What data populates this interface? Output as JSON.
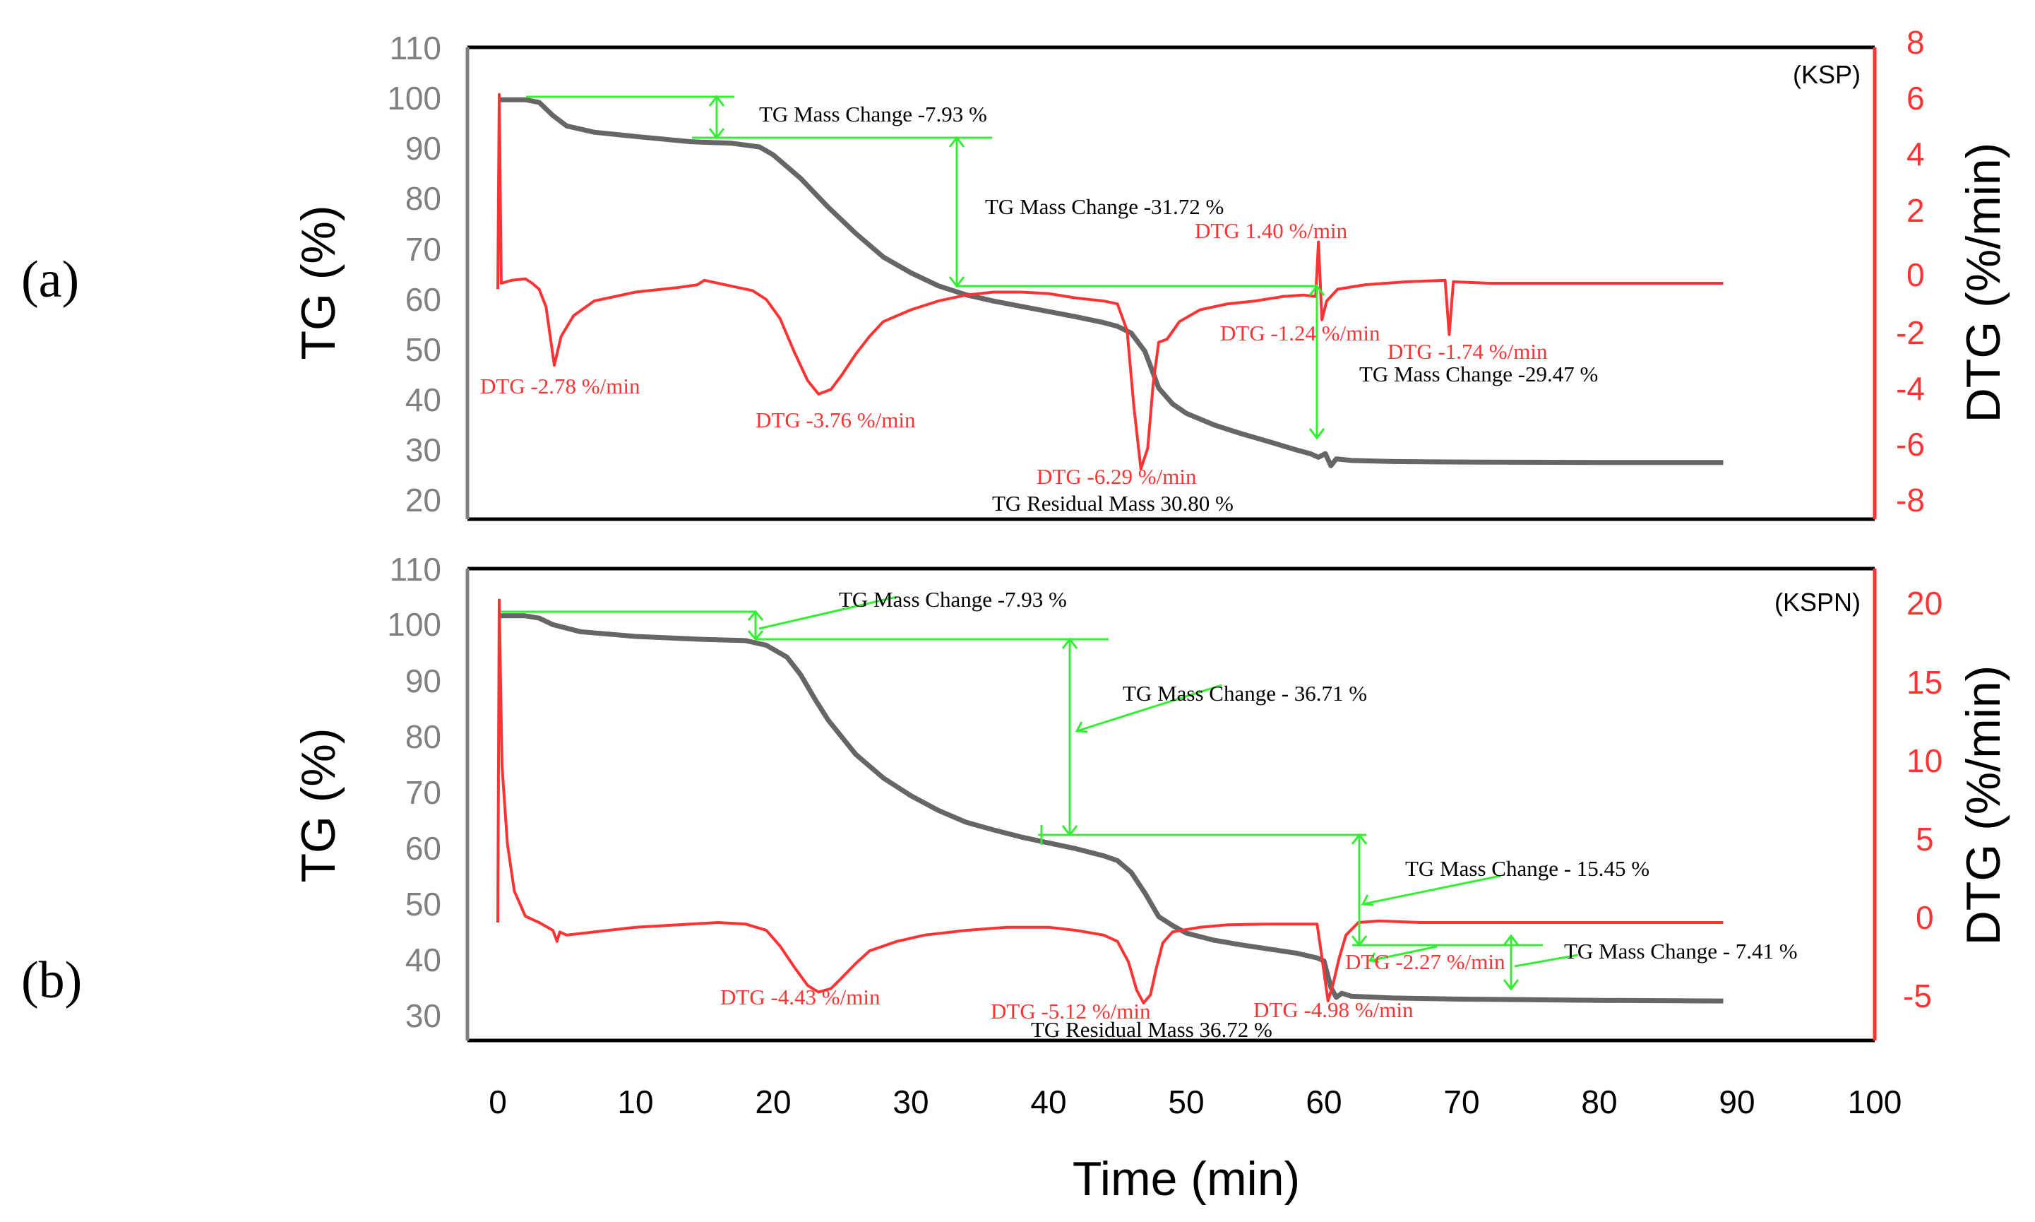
{
  "colors": {
    "tg": "#666666",
    "dtg": "#ff3333",
    "guide": "#33ee33",
    "frame": "#000000"
  },
  "chart_data": [
    {
      "type": "line",
      "panel_label": "(a)",
      "sample": "(KSP)",
      "xlabel": "Time (min)",
      "ylabel": "TG (%)",
      "y2label": "DTG (%/min)",
      "xlim": [
        0,
        100
      ],
      "ylim": [
        20,
        110
      ],
      "y2lim": [
        -8,
        8
      ],
      "x_ticks": [
        "0",
        "10",
        "20",
        "30",
        "40",
        "50",
        "60",
        "70",
        "80",
        "90",
        "100"
      ],
      "y_ticks": [
        "20",
        "30",
        "40",
        "50",
        "60",
        "70",
        "80",
        "90",
        "100",
        "110"
      ],
      "y2_ticks": [
        "-8",
        "-6",
        "-4",
        "-2",
        "0",
        "2",
        "4",
        "6",
        "8"
      ],
      "grid": false,
      "series": [
        {
          "axis": "left",
          "points": [
            [
              0,
              100
            ],
            [
              2,
              100
            ],
            [
              3,
              99.5
            ],
            [
              4,
              97
            ],
            [
              5,
              95
            ],
            [
              7,
              93.8
            ],
            [
              10,
              93
            ],
            [
              14,
              92
            ],
            [
              17,
              91.7
            ],
            [
              19,
              91
            ],
            [
              20,
              89.5
            ],
            [
              22,
              85
            ],
            [
              24,
              79.5
            ],
            [
              26,
              74.5
            ],
            [
              28,
              70
            ],
            [
              30,
              67
            ],
            [
              32,
              64.5
            ],
            [
              34,
              62.8
            ],
            [
              36,
              61.6
            ],
            [
              38,
              60.6
            ],
            [
              40,
              59.6
            ],
            [
              42,
              58.6
            ],
            [
              44,
              57.5
            ],
            [
              45,
              56.8
            ],
            [
              46,
              55.5
            ],
            [
              47,
              52
            ],
            [
              48,
              45
            ],
            [
              49,
              42
            ],
            [
              50,
              40.2
            ],
            [
              52,
              38
            ],
            [
              54,
              36.3
            ],
            [
              56,
              34.8
            ],
            [
              58,
              33.2
            ],
            [
              59,
              32.5
            ],
            [
              59.6,
              31.8
            ],
            [
              60.1,
              32.5
            ],
            [
              60.5,
              30.2
            ],
            [
              60.9,
              31.5
            ],
            [
              62,
              31.2
            ],
            [
              65,
              31
            ],
            [
              70,
              30.9
            ],
            [
              80,
              30.8
            ],
            [
              89,
              30.8
            ]
          ]
        },
        {
          "axis": "right",
          "points": [
            [
              0,
              -0.2
            ],
            [
              0.1,
              6.4
            ],
            [
              0.25,
              0
            ],
            [
              1,
              0.1
            ],
            [
              2,
              0.15
            ],
            [
              2.5,
              0
            ],
            [
              3,
              -0.2
            ],
            [
              3.5,
              -0.8
            ],
            [
              4.1,
              -2.78
            ],
            [
              4.6,
              -1.8
            ],
            [
              5.5,
              -1.1
            ],
            [
              7,
              -0.6
            ],
            [
              10,
              -0.3
            ],
            [
              13,
              -0.15
            ],
            [
              14.5,
              -0.05
            ],
            [
              15,
              0.1
            ],
            [
              17,
              -0.1
            ],
            [
              18.5,
              -0.25
            ],
            [
              19.5,
              -0.55
            ],
            [
              20.5,
              -1.2
            ],
            [
              21.5,
              -2.3
            ],
            [
              22.5,
              -3.3
            ],
            [
              23.3,
              -3.76
            ],
            [
              24.2,
              -3.6
            ],
            [
              25,
              -3.1
            ],
            [
              26,
              -2.4
            ],
            [
              27,
              -1.8
            ],
            [
              28,
              -1.3
            ],
            [
              30,
              -0.9
            ],
            [
              32,
              -0.6
            ],
            [
              34,
              -0.4
            ],
            [
              36,
              -0.3
            ],
            [
              38,
              -0.3
            ],
            [
              40,
              -0.35
            ],
            [
              42,
              -0.5
            ],
            [
              44,
              -0.6
            ],
            [
              45,
              -0.7
            ],
            [
              45.7,
              -1.6
            ],
            [
              46.2,
              -4.2
            ],
            [
              46.7,
              -6.29
            ],
            [
              47.2,
              -5.6
            ],
            [
              47.6,
              -3.4
            ],
            [
              48,
              -2
            ],
            [
              48.6,
              -1.9
            ],
            [
              49.5,
              -1.3
            ],
            [
              51,
              -0.9
            ],
            [
              53,
              -0.7
            ],
            [
              55,
              -0.6
            ],
            [
              57,
              -0.45
            ],
            [
              58.5,
              -0.4
            ],
            [
              59.4,
              -0.45
            ],
            [
              59.6,
              1.4
            ],
            [
              59.85,
              -1.24
            ],
            [
              60.2,
              -0.6
            ],
            [
              61,
              -0.2
            ],
            [
              63,
              -0.05
            ],
            [
              66,
              0.05
            ],
            [
              68.8,
              0.1
            ],
            [
              69.1,
              -1.74
            ],
            [
              69.4,
              0.05
            ],
            [
              72,
              0
            ],
            [
              76,
              0
            ],
            [
              80,
              0
            ],
            [
              85,
              0
            ],
            [
              89,
              0
            ]
          ]
        }
      ],
      "annotations": {
        "tg_changes": [
          "TG Mass Change -7.93 %",
          "TG Mass Change -31.72 %",
          "TG Mass Change -29.47 %"
        ],
        "tg_residual": "TG Residual Mass 30.80 %",
        "dtg_peaks": [
          "DTG -2.78 %/min",
          "DTG -3.76 %/min",
          "DTG -6.29 %/min",
          "DTG 1.40 %/min",
          "DTG -1.24 %/min",
          "DTG -1.74 %/min"
        ]
      }
    },
    {
      "type": "line",
      "panel_label": "(b)",
      "sample": "(KSPN)",
      "xlabel": "Time (min)",
      "ylabel": "TG (%)",
      "y2label": "DTG (%/min)",
      "xlim": [
        0,
        100
      ],
      "ylim": [
        30,
        110
      ],
      "y2lim": [
        -7.5,
        22.5
      ],
      "x_ticks": [
        "0",
        "10",
        "20",
        "30",
        "40",
        "50",
        "60",
        "70",
        "80",
        "90",
        "100"
      ],
      "y_ticks": [
        "30",
        "40",
        "50",
        "60",
        "70",
        "80",
        "90",
        "100",
        "110"
      ],
      "y2_ticks": [
        "-5",
        "0",
        "5",
        "10",
        "15",
        "20"
      ],
      "grid": false,
      "series": [
        {
          "axis": "left",
          "points": [
            [
              0,
              102
            ],
            [
              2,
              102
            ],
            [
              3,
              101.6
            ],
            [
              4,
              100.5
            ],
            [
              6,
              99.3
            ],
            [
              10,
              98.5
            ],
            [
              15,
              98
            ],
            [
              18,
              97.8
            ],
            [
              19.5,
              97
            ],
            [
              21,
              95
            ],
            [
              22,
              92
            ],
            [
              23,
              88
            ],
            [
              24,
              84.3
            ],
            [
              26,
              78.5
            ],
            [
              28,
              74.5
            ],
            [
              30,
              71.5
            ],
            [
              32,
              69
            ],
            [
              34,
              67
            ],
            [
              36,
              65.7
            ],
            [
              38,
              64.5
            ],
            [
              40,
              63.5
            ],
            [
              42,
              62.5
            ],
            [
              44,
              61.3
            ],
            [
              45,
              60.5
            ],
            [
              46,
              58.5
            ],
            [
              47,
              55
            ],
            [
              48,
              51
            ],
            [
              49,
              49.5
            ],
            [
              50,
              48.2
            ],
            [
              52,
              47
            ],
            [
              54,
              46.2
            ],
            [
              56,
              45.5
            ],
            [
              58,
              44.8
            ],
            [
              59.5,
              44
            ],
            [
              60,
              43.5
            ],
            [
              60.5,
              39
            ],
            [
              60.9,
              37.3
            ],
            [
              61.3,
              38
            ],
            [
              62,
              37.5
            ],
            [
              65,
              37.2
            ],
            [
              70,
              37
            ],
            [
              80,
              36.8
            ],
            [
              89,
              36.7
            ]
          ]
        },
        {
          "axis": "right",
          "points": [
            [
              0,
              0
            ],
            [
              0.1,
              20.5
            ],
            [
              0.3,
              10
            ],
            [
              0.7,
              5
            ],
            [
              1.2,
              2
            ],
            [
              2,
              0.4
            ],
            [
              3,
              0
            ],
            [
              4,
              -0.5
            ],
            [
              4.3,
              -1.2
            ],
            [
              4.5,
              -0.6
            ],
            [
              5,
              -0.8
            ],
            [
              7,
              -0.6
            ],
            [
              10,
              -0.3
            ],
            [
              14,
              -0.1
            ],
            [
              16,
              0
            ],
            [
              18,
              -0.1
            ],
            [
              19.5,
              -0.5
            ],
            [
              20.5,
              -1.5
            ],
            [
              21.5,
              -2.8
            ],
            [
              22.5,
              -4
            ],
            [
              23.3,
              -4.43
            ],
            [
              24.2,
              -4.2
            ],
            [
              25,
              -3.5
            ],
            [
              26,
              -2.6
            ],
            [
              27,
              -1.8
            ],
            [
              29,
              -1.2
            ],
            [
              31,
              -0.8
            ],
            [
              34,
              -0.5
            ],
            [
              37,
              -0.3
            ],
            [
              40,
              -0.3
            ],
            [
              42,
              -0.5
            ],
            [
              44,
              -0.8
            ],
            [
              45,
              -1.2
            ],
            [
              45.8,
              -2.5
            ],
            [
              46.4,
              -4.3
            ],
            [
              46.9,
              -5.12
            ],
            [
              47.4,
              -4.6
            ],
            [
              47.8,
              -3
            ],
            [
              48.3,
              -1.3
            ],
            [
              49,
              -0.6
            ],
            [
              51,
              -0.3
            ],
            [
              53,
              -0.15
            ],
            [
              56,
              -0.1
            ],
            [
              59,
              -0.1
            ],
            [
              59.5,
              -0.1
            ],
            [
              59.9,
              -2.5
            ],
            [
              60.3,
              -4.98
            ],
            [
              60.7,
              -3.8
            ],
            [
              61.1,
              -2.27
            ],
            [
              61.6,
              -0.8
            ],
            [
              62.5,
              0
            ],
            [
              64,
              0.1
            ],
            [
              67,
              0
            ],
            [
              70,
              0
            ],
            [
              75,
              0
            ],
            [
              80,
              0
            ],
            [
              85,
              0
            ],
            [
              89,
              0
            ]
          ]
        }
      ],
      "annotations": {
        "tg_changes": [
          "TG Mass Change -7.93 %",
          "TG Mass Change - 36.71 %",
          "TG Mass Change - 15.45 %",
          "TG Mass Change - 7.41 %"
        ],
        "tg_residual": "TG Residual Mass 36.72 %",
        "dtg_peaks": [
          "DTG -4.43 %/min",
          "DTG -5.12 %/min",
          "DTG -4.98 %/min",
          "DTG -2.27 %/min"
        ]
      }
    }
  ]
}
